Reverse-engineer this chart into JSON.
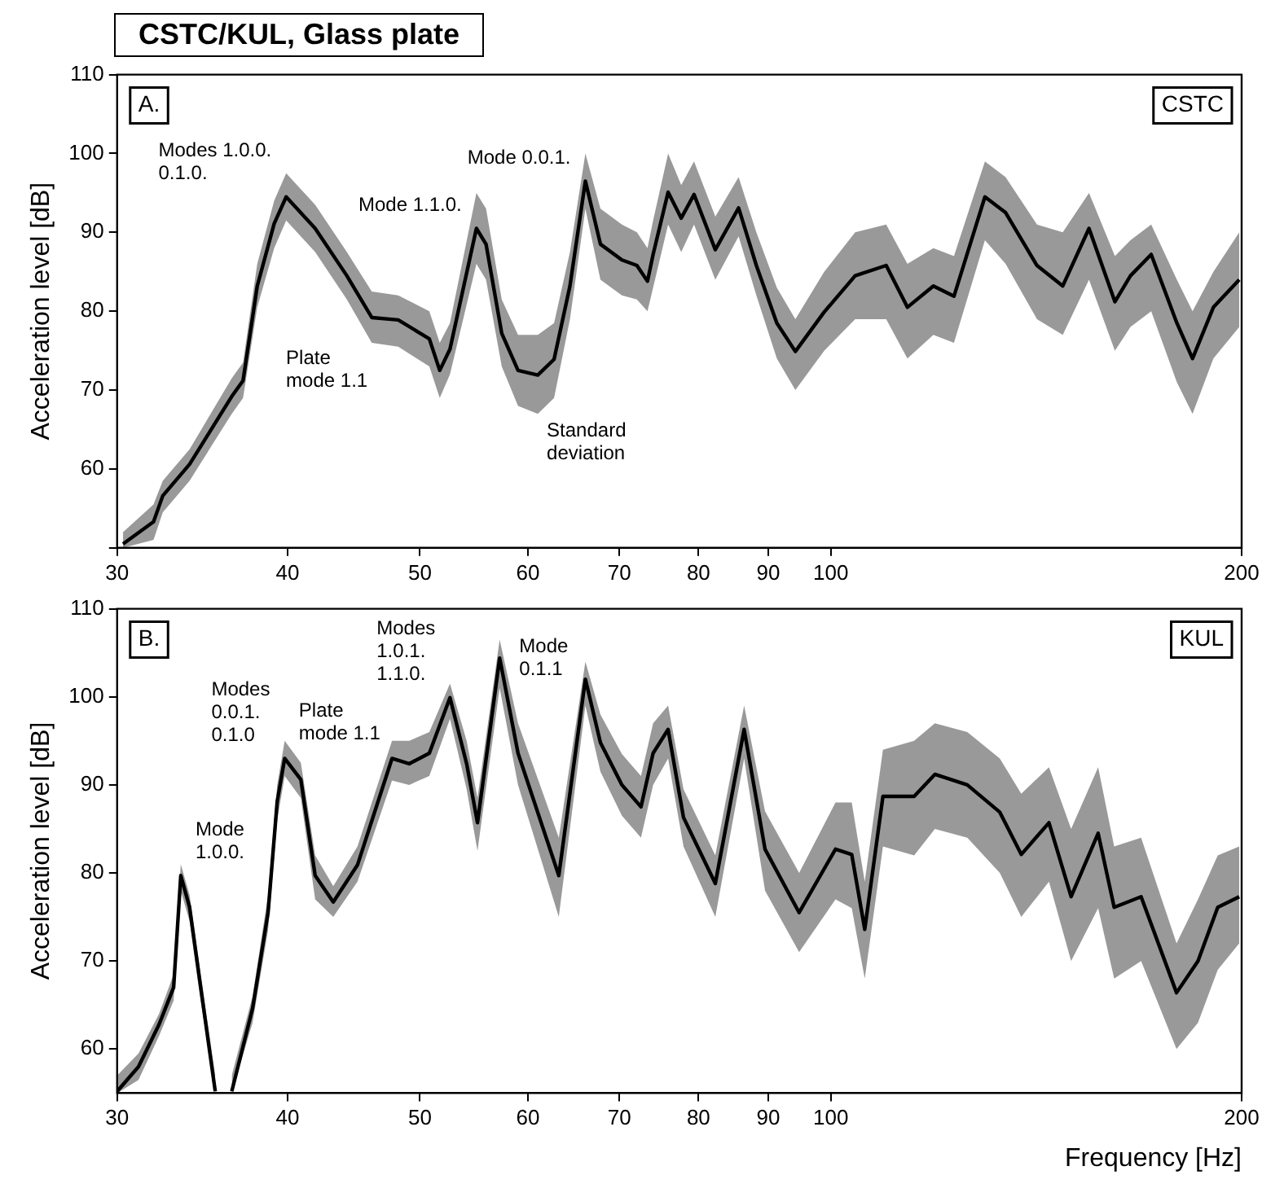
{
  "chart_data": [
    {
      "type": "line",
      "title": "CSTC/KUL, Glass plate",
      "ylabel": "Acceleration level [dB]",
      "xlim": [
        30,
        200
      ],
      "xticks": [
        30,
        40,
        50,
        60,
        70,
        80,
        90,
        100,
        200
      ],
      "ylim": [
        50,
        110
      ],
      "yticks": [
        {
          "value": 50,
          "label": null
        },
        60,
        70,
        80,
        90,
        100,
        110
      ],
      "log": "x",
      "grid": false,
      "legend": false,
      "marker": "none",
      "line_style": "solid",
      "annotations": [
        "A.",
        "CSTC",
        {
          "text": "Modes 1.0.0.\n0.1.0.",
          "x": 39.9,
          "y": 94.5
        },
        {
          "text": "Mode 1.1.0.",
          "x": 55.0,
          "y": 90.5
        },
        {
          "text": "Mode 0.0.1.",
          "x": 66.1,
          "y": 96.5
        },
        {
          "text": "Plate\nmode 1.1",
          "x": 48.2,
          "y": 78.9
        },
        {
          "text": "Standard\ndeviation",
          "x": 61.0,
          "y": 67
        }
      ],
      "series": [
        {
          "color": "#000000",
          "x": [
            30.3,
            31.9,
            32.4,
            33.9,
            36.4,
            37.1,
            38.0,
            39.1,
            39.9,
            41.9,
            44.2,
            46.1,
            48.2,
            50.8,
            51.7,
            52.6,
            55.0,
            55.9,
            57.4,
            59.0,
            61.0,
            62.7,
            64.4,
            66.1,
            67.8,
            70.3,
            72.1,
            73.4,
            74.1,
            76.0,
            77.7,
            79.4,
            82.3,
            85.6,
            88.2,
            91.3,
            94.2,
            98.9,
            104.2,
            109.8,
            113.8,
            118.9,
            123.1,
            129.7,
            134.3,
            141.6,
            147.9,
            154.6,
            161.5,
            165.8,
            171.7,
            179.3,
            184.1,
            190.7,
            199.2
          ],
          "values": [
            50.5,
            53.3,
            56.6,
            60.6,
            69.2,
            71.2,
            83.2,
            91.1,
            94.5,
            90.5,
            84.5,
            79.2,
            78.9,
            76.5,
            72.5,
            75.2,
            90.5,
            88.5,
            77.2,
            72.5,
            71.9,
            73.9,
            83.2,
            96.5,
            88.5,
            86.5,
            85.8,
            83.8,
            87.2,
            95.1,
            91.8,
            94.8,
            87.8,
            93.1,
            85.8,
            78.5,
            74.9,
            79.9,
            84.5,
            85.8,
            80.5,
            83.2,
            81.9,
            94.5,
            92.5,
            85.8,
            83.2,
            90.5,
            81.2,
            84.5,
            87.2,
            78.5,
            74,
            80.5,
            84
          ],
          "lower": [
            50,
            51,
            54.5,
            58.5,
            67,
            69,
            80.5,
            88,
            91.5,
            87.5,
            81.5,
            76,
            75.5,
            73,
            69,
            72,
            86,
            84,
            73,
            68,
            67,
            69,
            79,
            93,
            84,
            82,
            81.5,
            80,
            83,
            91,
            87.5,
            91,
            84,
            89.5,
            82,
            74,
            70,
            75,
            79,
            79,
            74,
            77,
            76,
            89,
            86,
            79,
            77,
            84,
            75,
            78,
            80,
            71,
            67,
            74,
            78
          ],
          "upper": [
            52,
            55.5,
            58.5,
            62.5,
            71.5,
            73.5,
            86,
            94,
            97.5,
            93.5,
            87.5,
            82.5,
            82,
            80,
            76,
            78.5,
            95,
            93,
            81.5,
            77,
            77,
            78.5,
            87.5,
            100,
            93,
            91,
            90,
            88,
            91.5,
            100,
            96,
            99,
            92,
            97,
            90,
            83,
            79,
            85,
            90,
            91,
            86,
            88,
            87,
            99,
            97,
            91,
            90,
            95,
            87,
            89,
            91,
            84,
            80,
            85,
            90
          ]
        }
      ]
    },
    {
      "type": "line",
      "xlabel": "Frequency [Hz]",
      "ylabel": "Acceleration level [dB]",
      "xlim": [
        30,
        200
      ],
      "xticks": [
        30,
        40,
        50,
        60,
        70,
        80,
        90,
        100,
        200
      ],
      "ylim": [
        55,
        110
      ],
      "yticks": [
        60,
        70,
        80,
        90,
        100,
        110
      ],
      "log": "x",
      "grid": false,
      "legend": false,
      "marker": "none",
      "line_style": "solid",
      "annotations": [
        "B.",
        "KUL",
        {
          "text": "Mode\n1.0.0.",
          "x": 33.4,
          "y": 79.7
        },
        {
          "text": "Modes\n0.0.1.\n0.1.0",
          "x": 39.8,
          "y": 93.0
        },
        {
          "text": "Modes\n1.0.1.\n1.1.0.",
          "x": 52.6,
          "y": 99.9
        },
        {
          "text": "Mode\n0.1.1",
          "x": 57.2,
          "y": 104.4
        },
        {
          "text": "Plate\nmode 1.1",
          "x": 48.5,
          "y": 92.4
        }
      ],
      "series": [
        {
          "color": "#000000",
          "x": [
            30.0,
            31.1,
            32.2,
            33.0,
            33.4,
            33.9,
            34.5,
            35.4,
            35.9,
            36.4,
            37.7,
            38.7,
            39.3,
            39.8,
            40.9,
            41.9,
            43.2,
            45.0,
            47.7,
            49.1,
            50.8,
            52.6,
            54.1,
            55.1,
            57.2,
            59.0,
            63.2,
            66.1,
            67.8,
            70.3,
            72.6,
            74.1,
            76.0,
            78.0,
            82.3,
            86.4,
            89.5,
            94.8,
            100.8,
            103.6,
            105.9,
            109.2,
            115.1,
            119.2,
            125.9,
            133.0,
            137.9,
            144.5,
            150.0,
            157.0,
            161.3,
            168.8,
            179.2,
            185.8,
            192.1,
            199.2
          ],
          "values": [
            55.2,
            58.0,
            62.8,
            67.0,
            79.7,
            76.1,
            67.6,
            55.2,
            null,
            55.2,
            64.6,
            75.5,
            88.1,
            93.0,
            90.6,
            79.7,
            76.7,
            80.9,
            93.0,
            92.4,
            93.6,
            99.9,
            92.4,
            85.7,
            104.4,
            93.6,
            79.7,
            102.0,
            94.8,
            90.0,
            87.5,
            93.6,
            96.3,
            86.3,
            78.8,
            96.3,
            82.7,
            75.5,
            82.7,
            82.1,
            73.6,
            88.7,
            88.7,
            91.2,
            90.0,
            86.9,
            82.1,
            85.7,
            77.3,
            84.5,
            76.1,
            77.3,
            66.4,
            70.0,
            76.1,
            77.3
          ],
          "lower": [
            55,
            56.5,
            61.5,
            65.5,
            78,
            74.5,
            66,
            55,
            null,
            55,
            63,
            73.5,
            86,
            91,
            88.5,
            77,
            75,
            79,
            90.5,
            90,
            91,
            97.5,
            89.5,
            82.5,
            101,
            90,
            75,
            99,
            91.5,
            86.5,
            84,
            90,
            93,
            83,
            75,
            93,
            78,
            71,
            77,
            76,
            68,
            83,
            82,
            85,
            84,
            80,
            75,
            79,
            70,
            76,
            68,
            70,
            60,
            63,
            69,
            72
          ],
          "upper": [
            57,
            59.5,
            64,
            68.5,
            81,
            77.5,
            69,
            57,
            null,
            57,
            66,
            77.5,
            90,
            95,
            92.5,
            82,
            78.5,
            83,
            95,
            95,
            96,
            101.5,
            95,
            88.5,
            106.5,
            97,
            84,
            104,
            98,
            93.5,
            91,
            97,
            99,
            89.5,
            82,
            99,
            87,
            80,
            88,
            88,
            79,
            94,
            95,
            97,
            96,
            93,
            89,
            92,
            85,
            92,
            83,
            84,
            72,
            77,
            82,
            83
          ]
        }
      ]
    }
  ]
}
